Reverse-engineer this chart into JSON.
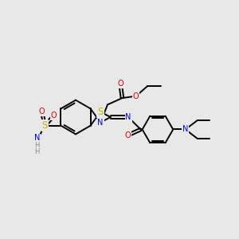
{
  "bg_color": "#e8e8e8",
  "bond_color": "#000000",
  "bond_lw": 1.4,
  "atom_colors": {
    "N": "#0000ee",
    "O": "#dd0000",
    "S": "#bbbb00",
    "H": "#888888",
    "C": "#000000"
  },
  "font_size": 7.0,
  "font_size_large": 8.5
}
